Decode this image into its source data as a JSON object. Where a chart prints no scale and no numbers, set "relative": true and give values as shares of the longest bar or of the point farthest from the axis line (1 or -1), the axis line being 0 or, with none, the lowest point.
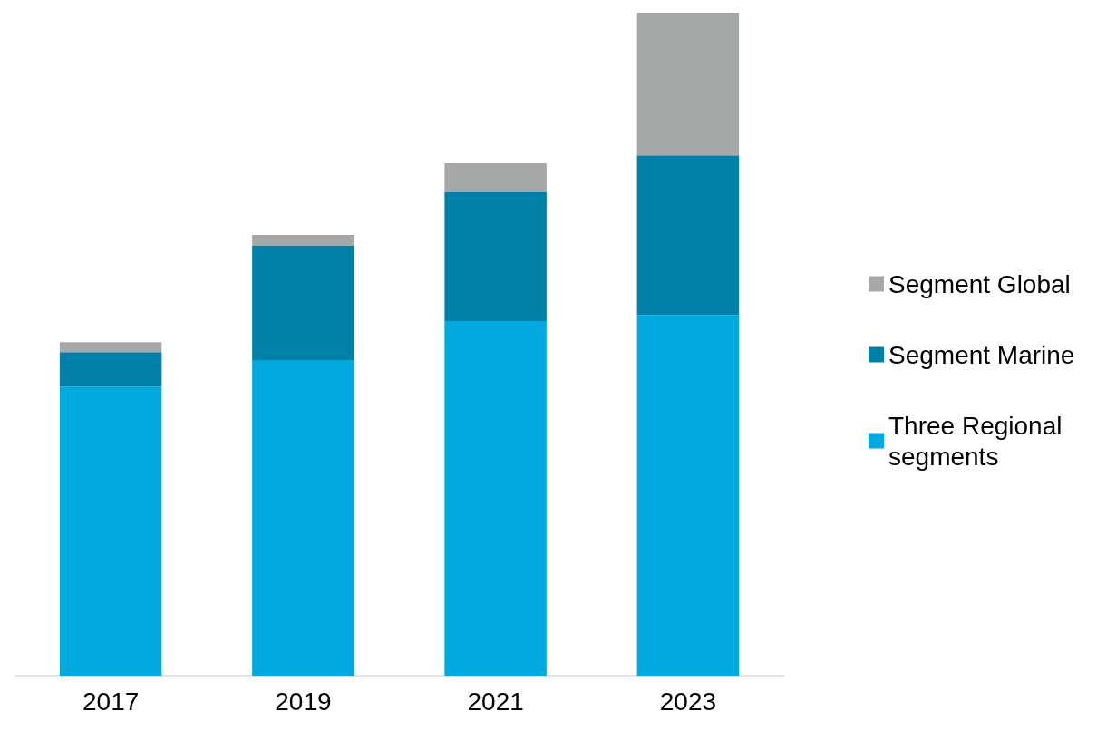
{
  "chart_data": {
    "type": "bar",
    "stacked": true,
    "relative": true,
    "legend": "right",
    "categories": [
      "2017",
      "2019",
      "2021",
      "2023"
    ],
    "series": [
      {
        "name": "Three Regional segments",
        "color": "#00a9e0",
        "values": [
          0.436,
          0.475,
          0.535,
          0.544
        ]
      },
      {
        "name": "Segment Marine",
        "color": "#007fa8",
        "values": [
          0.052,
          0.174,
          0.194,
          0.241
        ]
      },
      {
        "name": "Segment Global",
        "color": "#a6a8a7",
        "values": [
          0.015,
          0.016,
          0.044,
          0.215
        ]
      }
    ]
  }
}
